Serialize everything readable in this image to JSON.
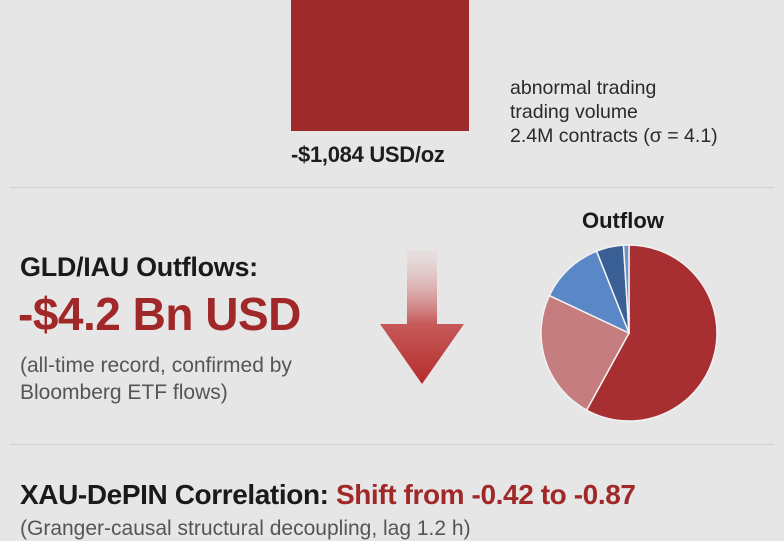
{
  "price": {
    "label": "-$1,084 USD/oz",
    "bar_color": "#9e2a2b"
  },
  "volume_note": {
    "lines": [
      "abnormal trading",
      "trading volume",
      "2.4M contracts (σ = 4.1)"
    ]
  },
  "outflows": {
    "heading": "GLD/IAU Outflows:",
    "value": "-$4.2 Bn USD",
    "note": "(all-time record, confirmed by Bloomberg ETF flows)",
    "arrow_icon": "down-arrow-icon",
    "accent": "#a02828"
  },
  "chart_data": {
    "type": "pie",
    "title": "Outflow",
    "values": [
      58,
      24,
      12,
      5,
      1
    ],
    "colors": [
      "#a72f31",
      "#c57d7f",
      "#5a88c6",
      "#3a5f95",
      "#6d93c8"
    ]
  },
  "correlation": {
    "heading": "XAU-DePIN Correlation: ",
    "shift": "Shift from -0.42 to -0.87",
    "note": "(Granger-causal structural decoupling, lag 1.2 h)"
  }
}
